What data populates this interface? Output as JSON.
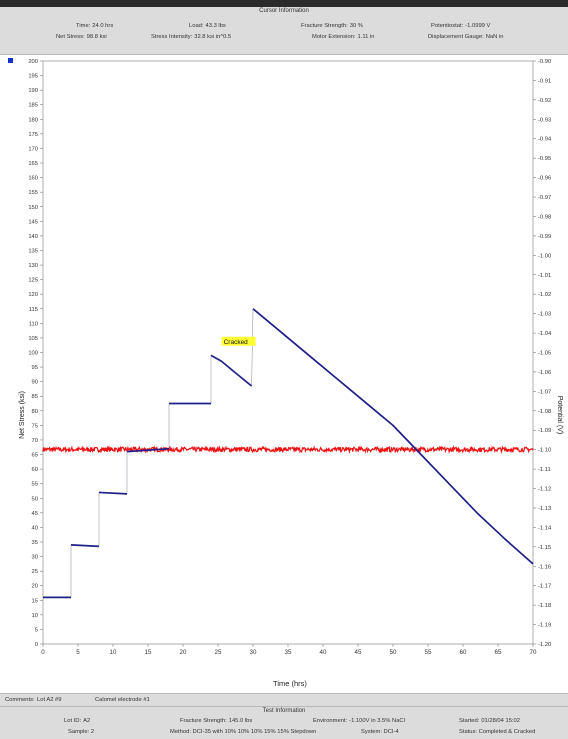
{
  "cursor_info": {
    "title": "Cursor Information",
    "time": {
      "label": "Time:",
      "value": "24.0 hrs"
    },
    "load": {
      "label": "Load:",
      "value": "43.3 lbs"
    },
    "fracture_strength": {
      "label": "Fracture Strength:",
      "value": "30 %"
    },
    "potentiostat": {
      "label": "Potentiostat:",
      "value": "-1.0999 V"
    },
    "net_stress": {
      "label": "Net Stress:",
      "value": "98.8 ksi"
    },
    "stress_intensity": {
      "label": "Stress Intensity:",
      "value": "32.8 ksi in^0.5"
    },
    "motor_extension": {
      "label": "Motor Extension:",
      "value": "1.11 in"
    },
    "displacement_gauge": {
      "label": "Displacement Gauge:",
      "value": "NaN in"
    }
  },
  "chart_data": {
    "type": "line",
    "xlabel": "Time (hrs)",
    "ylabel": "Net Stress (ksi)",
    "y2label": "Potential (V)",
    "xlim": [
      0,
      70
    ],
    "ylim": [
      0,
      200
    ],
    "y2lim": [
      -1.2,
      -0.9
    ],
    "x_ticks": [
      "0",
      "5",
      "10",
      "15",
      "20",
      "25",
      "30",
      "35",
      "40",
      "45",
      "50",
      "55",
      "60",
      "65",
      "70"
    ],
    "y_ticks": [
      "0",
      "5",
      "10",
      "15",
      "20",
      "25",
      "30",
      "35",
      "40",
      "45",
      "50",
      "55",
      "60",
      "65",
      "70",
      "75",
      "80",
      "85",
      "90",
      "95",
      "100",
      "105",
      "110",
      "115",
      "120",
      "125",
      "130",
      "135",
      "140",
      "145",
      "150",
      "155",
      "160",
      "165",
      "170",
      "175",
      "180",
      "185",
      "190",
      "195",
      "200"
    ],
    "y2_ticks": [
      "-0.90",
      "-0.91",
      "-0.92",
      "-0.93",
      "-0.94",
      "-0.95",
      "-0.96",
      "-0.97",
      "-0.98",
      "-0.99",
      "-1.00",
      "-1.01",
      "-1.02",
      "-1.03",
      "-1.04",
      "-1.05",
      "-1.06",
      "-1.07",
      "-1.08",
      "-1.09",
      "-1.10",
      "-1.11",
      "-1.12",
      "-1.13",
      "-1.14",
      "-1.15",
      "-1.16",
      "-1.17",
      "-1.18",
      "-1.19",
      "-1.20"
    ],
    "series": [
      {
        "axis": "left",
        "color": "#1f1f8a",
        "segments": [
          [
            [
              0,
              16
            ],
            [
              4,
              16
            ]
          ],
          [
            [
              4,
              34
            ],
            [
              8,
              33.5
            ]
          ],
          [
            [
              8,
              52
            ],
            [
              12,
              51.5
            ]
          ],
          [
            [
              12,
              66
            ],
            [
              18,
              67
            ]
          ],
          [
            [
              18,
              82.5
            ],
            [
              24,
              82.5
            ]
          ],
          [
            [
              24,
              99
            ],
            [
              25.5,
              97
            ],
            [
              27.5,
              93
            ],
            [
              29.8,
              88.5
            ]
          ],
          [
            [
              30,
              115
            ],
            [
              34,
              107
            ],
            [
              38,
              99
            ],
            [
              42,
              91
            ],
            [
              46,
              83
            ],
            [
              50,
              75
            ],
            [
              54,
              65
            ],
            [
              58,
              55
            ],
            [
              62,
              45
            ],
            [
              66,
              36
            ],
            [
              70,
              27.5
            ]
          ]
        ],
        "steps": [
          [
            [
              4,
              16
            ],
            [
              4,
              34
            ]
          ],
          [
            [
              8,
              33.5
            ],
            [
              8,
              52
            ]
          ],
          [
            [
              12,
              51.5
            ],
            [
              12,
              66
            ]
          ],
          [
            [
              18,
              67
            ],
            [
              18,
              82.5
            ]
          ],
          [
            [
              24,
              82.5
            ],
            [
              24,
              99
            ]
          ],
          [
            [
              29.8,
              88.5
            ],
            [
              30,
              115
            ]
          ]
        ]
      },
      {
        "axis": "right",
        "color": "#ee1111",
        "x_range": [
          0,
          70
        ],
        "level": -1.0999,
        "noise": 0.0012
      }
    ],
    "annotations": [
      {
        "text": "Cracked",
        "x": 25.8,
        "y": 103
      }
    ],
    "legend_marker_color": "#1133cc"
  },
  "comments": {
    "label": "Comments:",
    "value": "Lot A2 #9",
    "extra": "Calomel electrode #1"
  },
  "test_info": {
    "title": "Test Information",
    "lot_id": {
      "label": "Lot ID:",
      "value": "A2"
    },
    "fracture_strength": {
      "label": "Fracture Strength:",
      "value": "145.0 lbs"
    },
    "environment": {
      "label": "Environment:",
      "value": "-1.100V in 3.5% NaCl"
    },
    "started": {
      "label": "Started:",
      "value": "01/28/04 15:02"
    },
    "row2": [
      "Sample: 2",
      "Method: DCI-35 with 10% 10% 10% 15% 15% Stepdown",
      "System: DCI-4",
      "Status: Completed & Cracked"
    ]
  }
}
